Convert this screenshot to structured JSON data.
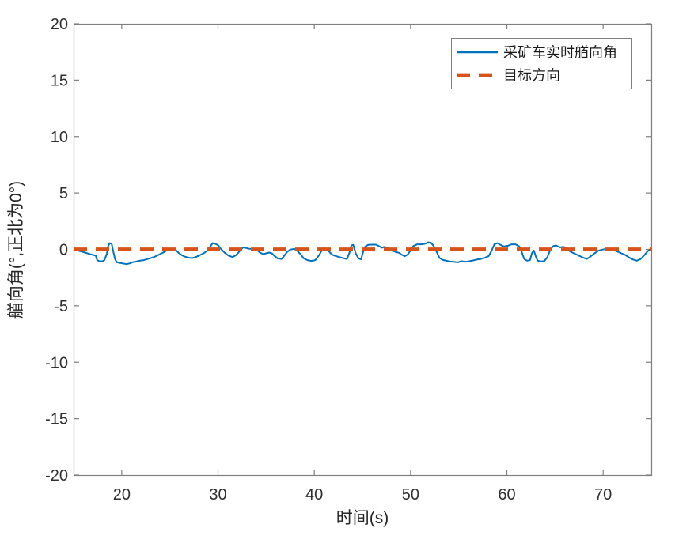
{
  "figure": {
    "background": "#ffffff",
    "title": ""
  },
  "chart_data": {
    "type": "line",
    "title": "",
    "xlabel": "时间(s)",
    "ylabel": "艏向角(°,正北为0°)",
    "xlim": [
      15,
      75
    ],
    "ylim": [
      -20,
      20
    ],
    "xticks": [
      20,
      30,
      40,
      50,
      60,
      70
    ],
    "yticks": [
      -20,
      -15,
      -10,
      -5,
      0,
      5,
      10,
      15,
      20
    ],
    "grid": false,
    "box": true,
    "tick_direction": "in",
    "axis_color": "#7f7f7f",
    "text_color": "#303030",
    "legend": {
      "position": "top-right",
      "border_color": "#7f7f7f",
      "background": "#ffffff",
      "entries": [
        {
          "key": "realtime-heading",
          "label": "采矿车实时艏向角",
          "color": "#0072BD",
          "line_style": "solid"
        },
        {
          "key": "target-direction",
          "label": "目标方向",
          "color": "#D95319",
          "line_style": "dashed"
        }
      ]
    },
    "series": [
      {
        "key": "realtime-heading",
        "name": "采矿车实时艏向角",
        "color": "#0072BD",
        "style": "solid",
        "width": 2,
        "points": [
          [
            15.0,
            -0.05
          ],
          [
            15.4,
            -0.1
          ],
          [
            15.8,
            -0.18
          ],
          [
            16.2,
            -0.28
          ],
          [
            16.6,
            -0.4
          ],
          [
            17.0,
            -0.48
          ],
          [
            17.3,
            -0.55
          ],
          [
            17.45,
            -0.95
          ],
          [
            17.7,
            -1.05
          ],
          [
            18.0,
            -1.05
          ],
          [
            18.2,
            -0.95
          ],
          [
            18.45,
            -0.4
          ],
          [
            18.6,
            0.3
          ],
          [
            18.75,
            0.55
          ],
          [
            18.95,
            0.5
          ],
          [
            19.1,
            -0.1
          ],
          [
            19.3,
            -0.85
          ],
          [
            19.5,
            -1.15
          ],
          [
            19.8,
            -1.2
          ],
          [
            20.1,
            -1.25
          ],
          [
            20.5,
            -1.3
          ],
          [
            20.8,
            -1.25
          ],
          [
            21.1,
            -1.15
          ],
          [
            21.5,
            -1.08
          ],
          [
            21.9,
            -1.0
          ],
          [
            22.3,
            -0.95
          ],
          [
            22.7,
            -0.85
          ],
          [
            23.1,
            -0.75
          ],
          [
            23.5,
            -0.62
          ],
          [
            23.9,
            -0.45
          ],
          [
            24.3,
            -0.28
          ],
          [
            24.7,
            -0.08
          ],
          [
            25.0,
            0.05
          ],
          [
            25.3,
            0.05
          ],
          [
            25.6,
            -0.05
          ],
          [
            25.9,
            -0.3
          ],
          [
            26.2,
            -0.5
          ],
          [
            26.5,
            -0.62
          ],
          [
            26.9,
            -0.72
          ],
          [
            27.3,
            -0.78
          ],
          [
            27.7,
            -0.68
          ],
          [
            28.1,
            -0.52
          ],
          [
            28.5,
            -0.35
          ],
          [
            28.9,
            -0.1
          ],
          [
            29.2,
            0.25
          ],
          [
            29.45,
            0.55
          ],
          [
            29.7,
            0.5
          ],
          [
            30.0,
            0.38
          ],
          [
            30.3,
            0.05
          ],
          [
            30.7,
            -0.3
          ],
          [
            31.1,
            -0.55
          ],
          [
            31.5,
            -0.68
          ],
          [
            31.9,
            -0.5
          ],
          [
            32.3,
            -0.1
          ],
          [
            32.6,
            0.18
          ],
          [
            32.9,
            0.12
          ],
          [
            33.3,
            0.05
          ],
          [
            33.7,
            0.02
          ],
          [
            34.1,
            -0.1
          ],
          [
            34.4,
            -0.3
          ],
          [
            34.7,
            -0.42
          ],
          [
            35.0,
            -0.35
          ],
          [
            35.3,
            -0.28
          ],
          [
            35.6,
            -0.35
          ],
          [
            35.9,
            -0.6
          ],
          [
            36.2,
            -0.8
          ],
          [
            36.6,
            -0.85
          ],
          [
            36.9,
            -0.55
          ],
          [
            37.2,
            -0.2
          ],
          [
            37.5,
            -0.02
          ],
          [
            37.9,
            0.05
          ],
          [
            38.2,
            -0.1
          ],
          [
            38.6,
            -0.45
          ],
          [
            38.9,
            -0.8
          ],
          [
            39.3,
            -0.95
          ],
          [
            39.7,
            -1.02
          ],
          [
            40.1,
            -0.95
          ],
          [
            40.5,
            -0.5
          ],
          [
            40.8,
            -0.05
          ],
          [
            41.1,
            0.1
          ],
          [
            41.4,
            -0.05
          ],
          [
            41.8,
            -0.45
          ],
          [
            42.2,
            -0.58
          ],
          [
            42.6,
            -0.68
          ],
          [
            43.0,
            -0.78
          ],
          [
            43.4,
            -0.85
          ],
          [
            43.65,
            -0.3
          ],
          [
            43.85,
            0.35
          ],
          [
            44.05,
            0.4
          ],
          [
            44.3,
            -0.35
          ],
          [
            44.6,
            -0.8
          ],
          [
            44.85,
            -0.88
          ],
          [
            45.05,
            -0.3
          ],
          [
            45.3,
            0.25
          ],
          [
            45.6,
            0.4
          ],
          [
            46.0,
            0.42
          ],
          [
            46.4,
            0.42
          ],
          [
            46.7,
            0.3
          ],
          [
            47.0,
            0.15
          ],
          [
            47.3,
            0.22
          ],
          [
            47.7,
            0.12
          ],
          [
            48.0,
            -0.05
          ],
          [
            48.4,
            -0.22
          ],
          [
            48.8,
            -0.3
          ],
          [
            49.1,
            -0.48
          ],
          [
            49.4,
            -0.6
          ],
          [
            49.7,
            -0.45
          ],
          [
            50.0,
            -0.1
          ],
          [
            50.3,
            0.3
          ],
          [
            50.7,
            0.45
          ],
          [
            51.1,
            0.45
          ],
          [
            51.5,
            0.5
          ],
          [
            51.8,
            0.62
          ],
          [
            52.1,
            0.6
          ],
          [
            52.4,
            0.3
          ],
          [
            52.7,
            -0.2
          ],
          [
            53.0,
            -0.75
          ],
          [
            53.3,
            -0.92
          ],
          [
            53.7,
            -1.0
          ],
          [
            54.1,
            -1.08
          ],
          [
            54.5,
            -1.1
          ],
          [
            54.9,
            -1.15
          ],
          [
            55.3,
            -1.05
          ],
          [
            55.7,
            -1.1
          ],
          [
            56.1,
            -1.05
          ],
          [
            56.5,
            -0.98
          ],
          [
            56.9,
            -0.9
          ],
          [
            57.3,
            -0.85
          ],
          [
            57.7,
            -0.75
          ],
          [
            58.1,
            -0.6
          ],
          [
            58.4,
            -0.15
          ],
          [
            58.7,
            0.45
          ],
          [
            59.0,
            0.55
          ],
          [
            59.3,
            0.42
          ],
          [
            59.7,
            0.25
          ],
          [
            60.1,
            0.32
          ],
          [
            60.5,
            0.45
          ],
          [
            60.9,
            0.45
          ],
          [
            61.3,
            0.25
          ],
          [
            61.55,
            -0.25
          ],
          [
            61.8,
            -0.85
          ],
          [
            62.1,
            -1.0
          ],
          [
            62.4,
            -0.95
          ],
          [
            62.6,
            -0.35
          ],
          [
            62.8,
            -0.1
          ],
          [
            63.0,
            -0.6
          ],
          [
            63.2,
            -1.0
          ],
          [
            63.6,
            -1.08
          ],
          [
            63.9,
            -1.02
          ],
          [
            64.2,
            -0.7
          ],
          [
            64.5,
            -0.05
          ],
          [
            64.8,
            0.28
          ],
          [
            65.1,
            0.35
          ],
          [
            65.5,
            0.18
          ],
          [
            65.9,
            0.22
          ],
          [
            66.2,
            0.12
          ],
          [
            66.5,
            -0.15
          ],
          [
            66.9,
            -0.32
          ],
          [
            67.3,
            -0.48
          ],
          [
            67.6,
            -0.6
          ],
          [
            67.9,
            -0.72
          ],
          [
            68.3,
            -0.85
          ],
          [
            68.7,
            -0.62
          ],
          [
            69.1,
            -0.35
          ],
          [
            69.5,
            -0.12
          ],
          [
            69.9,
            -0.02
          ],
          [
            70.3,
            0.05
          ],
          [
            70.7,
            0.0
          ],
          [
            71.1,
            -0.05
          ],
          [
            71.5,
            -0.2
          ],
          [
            71.9,
            -0.35
          ],
          [
            72.3,
            -0.5
          ],
          [
            72.7,
            -0.72
          ],
          [
            73.1,
            -0.9
          ],
          [
            73.5,
            -1.0
          ],
          [
            73.9,
            -0.85
          ],
          [
            74.3,
            -0.5
          ],
          [
            74.6,
            -0.18
          ],
          [
            75.0,
            0.1
          ]
        ]
      },
      {
        "key": "target-direction",
        "name": "目标方向",
        "color": "#D95319",
        "style": "dashed",
        "width": 4.8,
        "points": [
          [
            15,
            0
          ],
          [
            75,
            0
          ]
        ]
      }
    ]
  }
}
